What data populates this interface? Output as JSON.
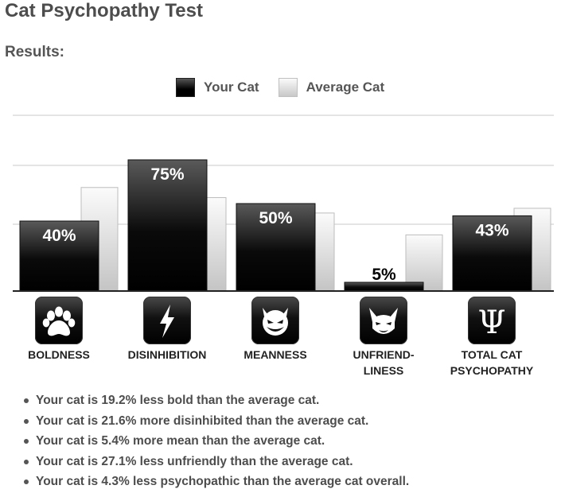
{
  "title": "Cat Psychopathy Test",
  "results_label": "Results:",
  "legend": {
    "your_cat": "Your Cat",
    "average_cat": "Average Cat"
  },
  "chart_data": {
    "type": "bar",
    "categories": [
      "BOLDNESS",
      "DISINHIBITION",
      "MEANNESS",
      "UNFRIEND-LINESS",
      "TOTAL CAT PSYCHOPATHY"
    ],
    "category_lines": [
      [
        "BOLDNESS"
      ],
      [
        "DISINHIBITION"
      ],
      [
        "MEANNESS"
      ],
      [
        "UNFRIEND-",
        "LINESS"
      ],
      [
        "TOTAL CAT",
        "PSYCHOPATHY"
      ]
    ],
    "icons": [
      "paw-icon",
      "lightning-icon",
      "devil-face-icon",
      "angry-cat-icon",
      "psi-icon"
    ],
    "series": [
      {
        "name": "Your Cat",
        "values": [
          40,
          75,
          50,
          5,
          43
        ],
        "labels": [
          "40%",
          "75%",
          "50%",
          "5%",
          "43%"
        ]
      },
      {
        "name": "Average Cat",
        "values": [
          59.2,
          53.4,
          44.6,
          32.1,
          47.3
        ]
      }
    ],
    "ylim": [
      0,
      100
    ],
    "grid": true,
    "legend_position": "top-center",
    "colors": {
      "your_cat": "#000000",
      "average_cat": "#d0d0d0"
    }
  },
  "results": [
    "Your cat is 19.2% less bold than the average cat.",
    "Your cat is 21.6% more disinhibited than the average cat.",
    "Your cat is 5.4% more mean than the average cat.",
    "Your cat is 27.1% less unfriendly than the average cat.",
    "Your cat is 4.3% less psychopathic than the average cat overall."
  ]
}
